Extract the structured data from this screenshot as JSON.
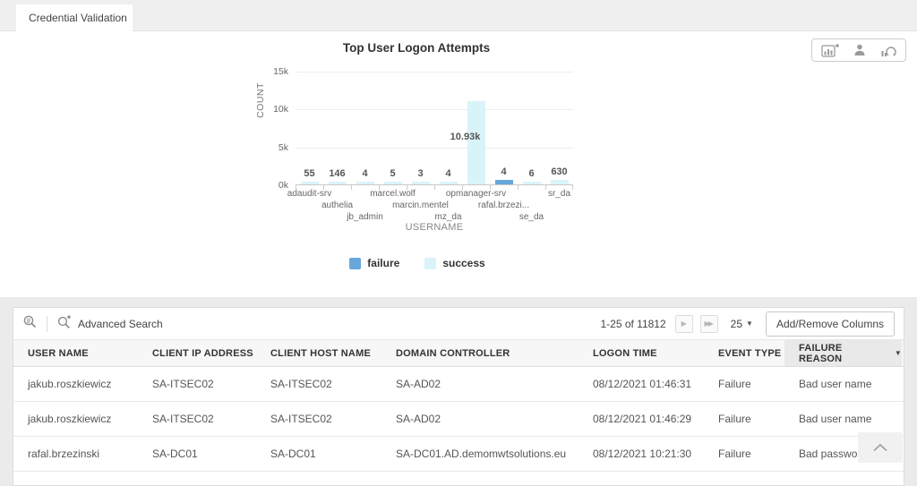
{
  "tabs": {
    "active": "Credential Validation"
  },
  "chart": {
    "title": "Top User Logon Attempts",
    "toolbar_icons": [
      "add-chart-icon",
      "user-report-icon",
      "refresh-chart-icon"
    ],
    "legend": [
      {
        "label": "failure",
        "color": "#68a7dc"
      },
      {
        "label": "success",
        "color": "#d9f4f9"
      }
    ]
  },
  "chart_data": {
    "type": "bar",
    "title": "Top User Logon Attempts",
    "xlabel": "USERNAME",
    "ylabel": "COUNT",
    "ylim": [
      0,
      15000
    ],
    "yticks": [
      {
        "value": 0,
        "label": "0k"
      },
      {
        "value": 5000,
        "label": "5k"
      },
      {
        "value": 10000,
        "label": "10k"
      },
      {
        "value": 15000,
        "label": "15k"
      }
    ],
    "grid": true,
    "legend_position": "bottom",
    "series_colors": {
      "failure": "#68a7dc",
      "success": "#d9f4f9"
    },
    "bars": [
      {
        "category": "adaudit-srv",
        "series": "success",
        "value": 55,
        "label": "55"
      },
      {
        "category": "authelia",
        "series": "success",
        "value": 146,
        "label": "146"
      },
      {
        "category": "jb_admin",
        "series": "success",
        "value": 4,
        "label": "4"
      },
      {
        "category": "marcel.wolf",
        "series": "success",
        "value": 5,
        "label": "5"
      },
      {
        "category": "marcin.mentel",
        "series": "success",
        "value": 3,
        "label": "3"
      },
      {
        "category": "mz_da",
        "series": "success",
        "value": 4,
        "label": "4"
      },
      {
        "category": "opmanager-srv",
        "series": "success",
        "value": 10930,
        "label": "10.93k"
      },
      {
        "category": "rafal.brzezi...",
        "series": "failure",
        "value": 4,
        "label": "4"
      },
      {
        "category": "se_da",
        "series": "success",
        "value": 6,
        "label": "6"
      },
      {
        "category": "sr_da",
        "series": "success",
        "value": 630,
        "label": "630"
      }
    ]
  },
  "table": {
    "toolbar": {
      "advanced_search_label": "Advanced Search",
      "pagination_text": "1-25 of 11812",
      "page_size": "25",
      "add_remove_columns_label": "Add/Remove Columns"
    },
    "columns": [
      {
        "label": "USER NAME"
      },
      {
        "label": "CLIENT IP ADDRESS"
      },
      {
        "label": "CLIENT HOST NAME"
      },
      {
        "label": "DOMAIN CONTROLLER"
      },
      {
        "label": "LOGON TIME"
      },
      {
        "label": "EVENT TYPE"
      },
      {
        "label": "FAILURE REASON",
        "sorted": true
      }
    ],
    "rows": [
      [
        "jakub.roszkiewicz",
        "SA-ITSEC02",
        "SA-ITSEC02",
        "SA-AD02",
        "08/12/2021 01:46:31",
        "Failure",
        "Bad user name"
      ],
      [
        "jakub.roszkiewicz",
        "SA-ITSEC02",
        "SA-ITSEC02",
        "SA-AD02",
        "08/12/2021 01:46:29",
        "Failure",
        "Bad user name"
      ],
      [
        "rafal.brzezinski",
        "SA-DC01",
        "SA-DC01",
        "SA-DC01.AD.demomwtsolutions.eu",
        "08/12/2021 10:21:30",
        "Failure",
        "Bad password"
      ]
    ]
  }
}
